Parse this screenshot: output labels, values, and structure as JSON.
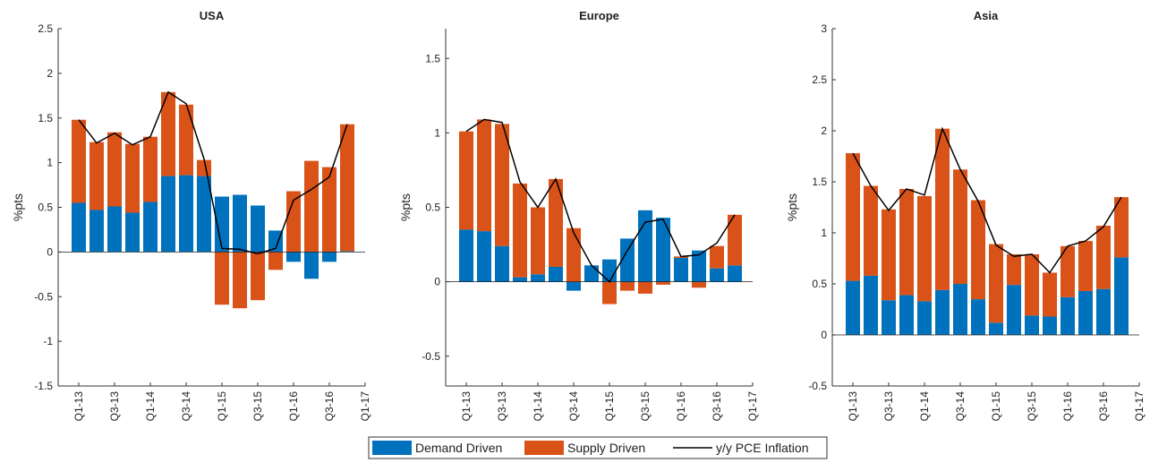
{
  "chart_data": [
    {
      "type": "bar",
      "stacked": true,
      "title": "USA",
      "y_label": "%pts",
      "categories": [
        "Q1-13",
        null,
        "Q3-13",
        null,
        "Q1-14",
        null,
        "Q3-14",
        null,
        "Q1-15",
        null,
        "Q3-15",
        null,
        "Q1-16",
        null,
        "Q3-16",
        null,
        "Q1-17"
      ],
      "ylim": [
        -1.5,
        2.5
      ],
      "yticks": [
        -1.5,
        -1,
        -0.5,
        0,
        0.5,
        1,
        1.5,
        2,
        2.5
      ],
      "series": [
        {
          "name": "Demand Driven",
          "type": "bar",
          "color": "#0072bd",
          "values": [
            0.55,
            0.47,
            0.51,
            0.44,
            0.56,
            0.85,
            0.86,
            0.85,
            0.62,
            0.64,
            0.52,
            0.24,
            -0.11,
            -0.3,
            -0.11,
            0.01,
            null
          ]
        },
        {
          "name": "Supply Driven",
          "type": "bar",
          "color": "#d95319",
          "values": [
            0.93,
            0.76,
            0.83,
            0.77,
            0.73,
            0.94,
            0.79,
            0.18,
            -0.59,
            -0.63,
            -0.54,
            -0.2,
            0.68,
            1.02,
            0.95,
            1.42,
            null
          ]
        },
        {
          "name": "y/y PCE Inflation",
          "type": "line",
          "color": "#000000",
          "values": [
            1.48,
            1.22,
            1.33,
            1.2,
            1.29,
            1.79,
            1.66,
            1.04,
            0.04,
            0.03,
            -0.02,
            0.04,
            0.58,
            0.7,
            0.84,
            1.43,
            null
          ]
        }
      ]
    },
    {
      "type": "bar",
      "stacked": true,
      "title": "Europe",
      "y_label": "%pts",
      "categories": [
        "Q1-13",
        null,
        "Q3-13",
        null,
        "Q1-14",
        null,
        "Q3-14",
        null,
        "Q1-15",
        null,
        "Q3-15",
        null,
        "Q1-16",
        null,
        "Q3-16",
        null,
        "Q1-17"
      ],
      "ylim": [
        -0.7,
        1.7
      ],
      "yticks": [
        -0.5,
        0,
        0.5,
        1,
        1.5
      ],
      "series": [
        {
          "name": "Demand Driven",
          "type": "bar",
          "color": "#0072bd",
          "values": [
            0.35,
            0.34,
            0.24,
            0.03,
            0.05,
            0.1,
            -0.06,
            0.11,
            0.15,
            0.29,
            0.48,
            0.43,
            0.16,
            0.21,
            0.09,
            0.11,
            null
          ]
        },
        {
          "name": "Supply Driven",
          "type": "bar",
          "color": "#d95319",
          "values": [
            0.66,
            0.75,
            0.82,
            0.63,
            0.45,
            0.59,
            0.36,
            0,
            -0.15,
            -0.06,
            -0.08,
            -0.02,
            0.01,
            -0.04,
            0.15,
            0.34,
            null
          ]
        },
        {
          "name": "y/y PCE Inflation",
          "type": "line",
          "color": "#000000",
          "values": [
            1.01,
            1.09,
            1.07,
            0.67,
            0.5,
            0.69,
            0.33,
            0.11,
            0.0,
            0.21,
            0.4,
            0.42,
            0.17,
            0.18,
            0.26,
            0.45,
            null
          ]
        }
      ]
    },
    {
      "type": "bar",
      "stacked": true,
      "title": "Asia",
      "y_label": "%pts",
      "categories": [
        "Q1-13",
        null,
        "Q3-13",
        null,
        "Q1-14",
        null,
        "Q3-14",
        null,
        "Q1-15",
        null,
        "Q3-15",
        null,
        "Q1-16",
        null,
        "Q3-16",
        null,
        "Q1-17"
      ],
      "ylim": [
        -0.5,
        3
      ],
      "yticks": [
        -0.5,
        0,
        0.5,
        1,
        1.5,
        2,
        2.5,
        3
      ],
      "series": [
        {
          "name": "Demand Driven",
          "type": "bar",
          "color": "#0072bd",
          "values": [
            0.53,
            0.58,
            0.34,
            0.39,
            0.33,
            0.44,
            0.5,
            0.35,
            0.12,
            0.49,
            0.19,
            0.18,
            0.37,
            0.43,
            0.45,
            0.76,
            null
          ]
        },
        {
          "name": "Supply Driven",
          "type": "bar",
          "color": "#d95319",
          "values": [
            1.25,
            0.88,
            0.89,
            1.04,
            1.03,
            1.58,
            1.12,
            0.97,
            0.77,
            0.3,
            0.6,
            0.43,
            0.5,
            0.49,
            0.62,
            0.59,
            null
          ]
        },
        {
          "name": "y/y PCE Inflation",
          "type": "line",
          "color": "#000000",
          "values": [
            1.78,
            1.46,
            1.22,
            1.43,
            1.37,
            2.02,
            1.62,
            1.31,
            0.88,
            0.77,
            0.79,
            0.61,
            0.87,
            0.92,
            1.06,
            1.35,
            null
          ]
        }
      ]
    }
  ]
}
